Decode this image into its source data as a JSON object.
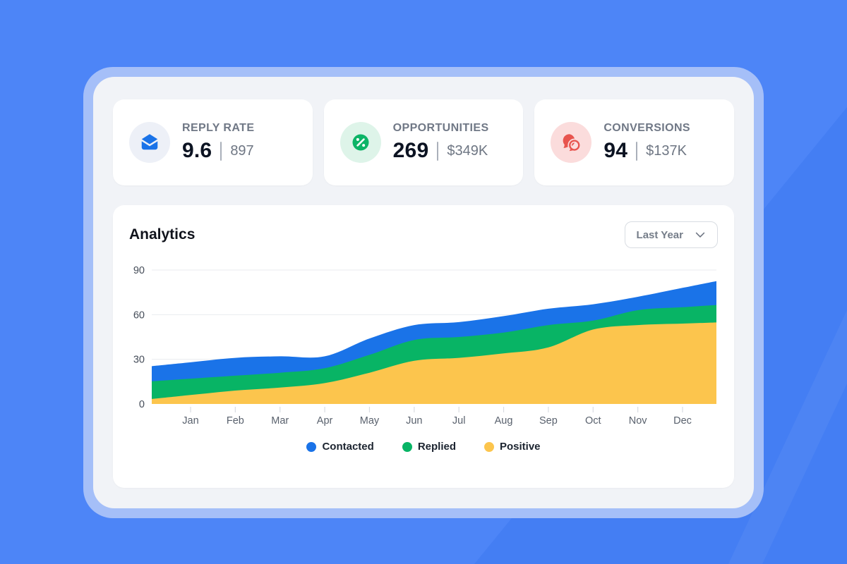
{
  "theme": {
    "background": "#4d85f7",
    "background_facet": "#447ef3",
    "frame": "#a5bff8",
    "panel": "#f1f3f7",
    "card": "#ffffff"
  },
  "stats": [
    {
      "label": "REPLY RATE",
      "value": "9.6",
      "secondary": "897",
      "icon": "envelope-icon",
      "icon_color": "#1a73e8",
      "icon_bg": "#edf0f7"
    },
    {
      "label": "OPPORTUNITIES",
      "value": "269",
      "secondary": "$349K",
      "icon": "percent-icon",
      "icon_color": "#0db467",
      "icon_bg": "#def4e9"
    },
    {
      "label": "CONVERSIONS",
      "value": "94",
      "secondary": "$137K",
      "icon": "chat-bubbles-icon",
      "icon_color": "#e8544e",
      "icon_bg": "#fbdcdc"
    }
  ],
  "analytics": {
    "title": "Analytics",
    "range_selector": {
      "label": "Last Year",
      "icon": "chevron-down-icon"
    }
  },
  "chart_data": {
    "type": "area",
    "stacked": true,
    "title": "Analytics",
    "categories": [
      "Jan",
      "Feb",
      "Mar",
      "Apr",
      "May",
      "Jun",
      "Jul",
      "Aug",
      "Sep",
      "Oct",
      "Nov",
      "Dec"
    ],
    "series": [
      {
        "name": "Positive",
        "color": "#fcc54d",
        "values": [
          6,
          9,
          11,
          14,
          21,
          29,
          31,
          34,
          38,
          50,
          53,
          54
        ]
      },
      {
        "name": "Replied",
        "color": "#08b465",
        "values": [
          11,
          10,
          10,
          10,
          12,
          14,
          14,
          14,
          15,
          6,
          10,
          11
        ]
      },
      {
        "name": "Contacted",
        "color": "#1a73e8",
        "values": [
          11,
          12,
          11,
          8,
          11,
          10,
          10,
          11,
          11,
          11,
          9,
          13
        ]
      }
    ],
    "stacked_totals_note": "series stack bottom-to-top: Positive, Replied, Contacted",
    "ylim": [
      0,
      90
    ],
    "yticks": [
      0,
      30,
      60,
      90
    ],
    "grid": true,
    "legend_position": "bottom",
    "legend_order": [
      "Contacted",
      "Replied",
      "Positive"
    ]
  }
}
